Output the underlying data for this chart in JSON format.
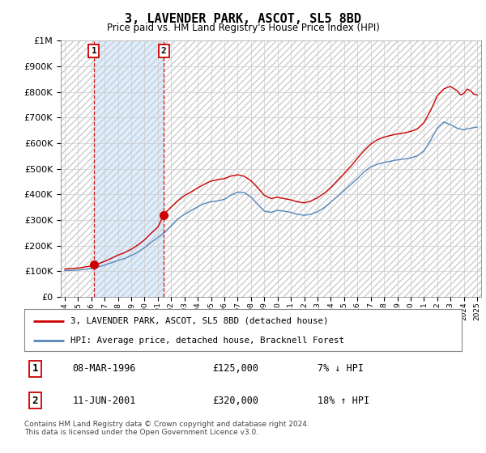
{
  "title": "3, LAVENDER PARK, ASCOT, SL5 8BD",
  "subtitle": "Price paid vs. HM Land Registry's House Price Index (HPI)",
  "legend_line1": "3, LAVENDER PARK, ASCOT, SL5 8BD (detached house)",
  "legend_line2": "HPI: Average price, detached house, Bracknell Forest",
  "footer": "Contains HM Land Registry data © Crown copyright and database right 2024.\nThis data is licensed under the Open Government Licence v3.0.",
  "sale1_label": "1",
  "sale1_date": "08-MAR-1996",
  "sale1_price": "£125,000",
  "sale1_hpi": "7% ↓ HPI",
  "sale1_year": 1996.19,
  "sale1_value": 125000,
  "sale2_label": "2",
  "sale2_date": "11-JUN-2001",
  "sale2_price": "£320,000",
  "sale2_hpi": "18% ↑ HPI",
  "sale2_year": 2001.44,
  "sale2_value": 320000,
  "red_color": "#cc0000",
  "blue_color": "#5588bb",
  "shade_color": "#ddeeff",
  "background_color": "#ffffff",
  "grid_color": "#cccccc",
  "ylim": [
    0,
    1000000
  ],
  "xlim_start": 1993.7,
  "xlim_end": 2025.3
}
